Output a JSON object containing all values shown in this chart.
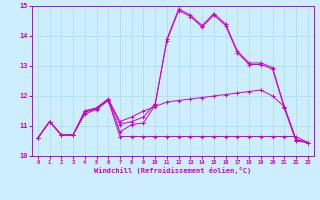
{
  "xlabel": "Windchill (Refroidissement éolien,°C)",
  "background_color": "#cceeff",
  "line_color": "#cc00cc",
  "xlim": [
    -0.5,
    23.5
  ],
  "ylim": [
    10,
    15
  ],
  "xticks": [
    0,
    1,
    2,
    3,
    4,
    5,
    6,
    7,
    8,
    9,
    10,
    11,
    12,
    13,
    14,
    15,
    16,
    17,
    18,
    19,
    20,
    21,
    22,
    23
  ],
  "yticks": [
    10,
    11,
    12,
    13,
    14,
    15
  ],
  "grid_color": "#aadddd",
  "lines": [
    {
      "x": [
        0,
        1,
        2,
        3,
        4,
        5,
        6,
        7,
        8,
        9,
        10,
        11,
        12,
        13,
        14,
        15,
        16,
        17,
        18,
        19,
        20,
        21,
        22,
        23
      ],
      "y": [
        10.6,
        11.15,
        10.7,
        10.7,
        11.5,
        11.6,
        11.9,
        10.8,
        11.05,
        11.1,
        11.7,
        13.9,
        14.9,
        14.7,
        14.35,
        14.75,
        14.4,
        13.5,
        13.1,
        13.1,
        12.95,
        11.65,
        10.55,
        10.45
      ]
    },
    {
      "x": [
        0,
        1,
        2,
        3,
        4,
        5,
        6,
        7,
        8,
        9,
        10,
        11,
        12,
        13,
        14,
        15,
        16,
        17,
        18,
        19,
        20,
        21,
        22,
        23
      ],
      "y": [
        10.6,
        11.15,
        10.7,
        10.7,
        11.5,
        11.6,
        11.9,
        11.15,
        11.3,
        11.5,
        11.65,
        11.8,
        11.85,
        11.9,
        11.95,
        12.0,
        12.05,
        12.1,
        12.15,
        12.2,
        12.0,
        11.65,
        10.55,
        10.45
      ]
    },
    {
      "x": [
        0,
        1,
        2,
        3,
        4,
        5,
        6,
        7,
        8,
        9,
        10,
        11,
        12,
        13,
        14,
        15,
        16,
        17,
        18,
        19,
        20,
        21,
        22,
        23
      ],
      "y": [
        10.6,
        11.15,
        10.7,
        10.7,
        11.4,
        11.55,
        11.85,
        10.65,
        10.65,
        10.65,
        10.65,
        10.65,
        10.65,
        10.65,
        10.65,
        10.65,
        10.65,
        10.65,
        10.65,
        10.65,
        10.65,
        10.65,
        10.65,
        10.45
      ]
    },
    {
      "x": [
        0,
        1,
        2,
        3,
        4,
        5,
        6,
        7,
        8,
        9,
        10,
        11,
        12,
        13,
        14,
        15,
        16,
        17,
        18,
        19,
        20,
        21,
        22,
        23
      ],
      "y": [
        10.6,
        11.15,
        10.7,
        10.7,
        11.45,
        11.58,
        11.88,
        11.05,
        11.15,
        11.3,
        11.75,
        13.85,
        14.85,
        14.65,
        14.3,
        14.7,
        14.35,
        13.45,
        13.05,
        13.05,
        12.9,
        11.6,
        10.5,
        10.45
      ]
    }
  ]
}
